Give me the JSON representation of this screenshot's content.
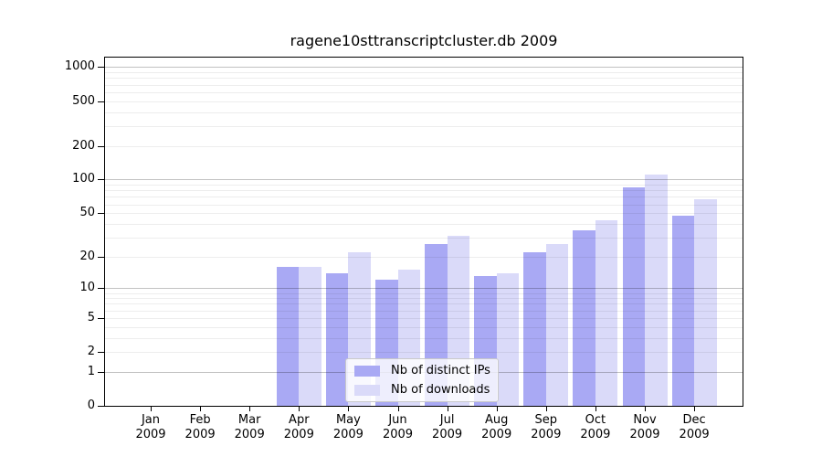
{
  "chart_data": {
    "type": "bar",
    "title": "ragene10sttranscriptcluster.db 2009",
    "categories": [
      "Jan",
      "Feb",
      "Mar",
      "Apr",
      "May",
      "Jun",
      "Jul",
      "Aug",
      "Sep",
      "Oct",
      "Nov",
      "Dec"
    ],
    "category_year": "2009",
    "series": [
      {
        "name": "Nb of distinct IPs",
        "color": "#a9a9f4",
        "values": [
          0,
          0,
          0,
          16,
          14,
          12,
          26,
          13,
          22,
          35,
          85,
          47
        ]
      },
      {
        "name": "Nb of downloads",
        "color": "#dadaf9",
        "values": [
          0,
          0,
          0,
          16,
          22,
          15,
          31,
          14,
          26,
          43,
          110,
          66
        ]
      }
    ],
    "yscale": "log10(value+1)",
    "ytick_values": [
      0,
      1,
      2,
      5,
      10,
      20,
      50,
      100,
      200,
      500,
      1000
    ],
    "ytick_labels": [
      "0",
      "1",
      "2",
      "5",
      "10",
      "20",
      "50",
      "100",
      "200",
      "500",
      "1000"
    ],
    "ylim": [
      0,
      1215
    ],
    "grid": "on",
    "legend_position": "lower center"
  }
}
